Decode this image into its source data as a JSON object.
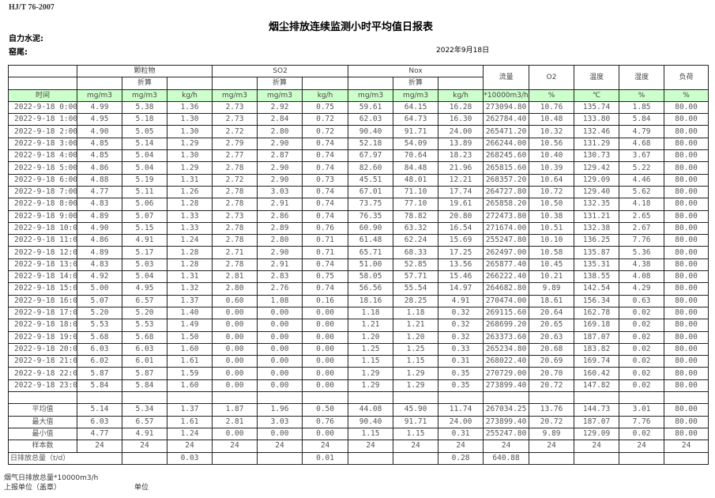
{
  "standard": "HJ/T  76-2007",
  "title": "烟尘排放连续监测小时平均值日报表",
  "company": "自力水泥:",
  "kiln": "窑尾:",
  "date": "2022年9月18日",
  "header": {
    "groups": [
      "颗粒物",
      "SO2",
      "Nox"
    ],
    "single": [
      "流量",
      "O2",
      "温度",
      "湿度",
      "负荷"
    ],
    "converted": "折算",
    "units": [
      "时间",
      "mg/m3",
      "mg/m3",
      "kg/h",
      "mg/m3",
      "mg/m3",
      "kg/h",
      "mg/m3",
      "mg/m3",
      "kg/h",
      "*10000m3/h",
      "%",
      "℃",
      "%",
      "%"
    ]
  },
  "rows": [
    [
      "2022-9-18 0:00",
      "4.99",
      "5.38",
      "1.36",
      "2.73",
      "2.92",
      "0.75",
      "59.61",
      "64.15",
      "16.28",
      "273094.80",
      "10.76",
      "135.74",
      "1.85",
      "80.00"
    ],
    [
      "2022-9-18 1:00",
      "4.95",
      "5.18",
      "1.30",
      "2.73",
      "2.84",
      "0.72",
      "62.03",
      "64.73",
      "16.30",
      "262784.40",
      "10.48",
      "133.80",
      "5.84",
      "80.00"
    ],
    [
      "2022-9-18 2:00",
      "4.90",
      "5.05",
      "1.30",
      "2.72",
      "2.80",
      "0.72",
      "90.40",
      "91.71",
      "24.00",
      "265471.20",
      "10.32",
      "132.46",
      "4.79",
      "80.00"
    ],
    [
      "2022-9-18 3:00",
      "4.85",
      "5.14",
      "1.29",
      "2.79",
      "2.90",
      "0.74",
      "52.18",
      "54.09",
      "13.89",
      "266244.00",
      "10.56",
      "131.29",
      "4.68",
      "80.00"
    ],
    [
      "2022-9-18 4:00",
      "4.85",
      "5.04",
      "1.30",
      "2.77",
      "2.87",
      "0.74",
      "67.97",
      "70.64",
      "18.23",
      "268245.60",
      "10.40",
      "130.73",
      "3.67",
      "80.00"
    ],
    [
      "2022-9-18 5:00",
      "4.86",
      "5.04",
      "1.29",
      "2.78",
      "2.90",
      "0.74",
      "82.60",
      "84.48",
      "21.96",
      "265815.60",
      "10.39",
      "129.42",
      "5.22",
      "80.00"
    ],
    [
      "2022-9-18 6:00",
      "4.88",
      "5.19",
      "1.31",
      "2.72",
      "2.90",
      "0.73",
      "45.51",
      "48.01",
      "12.21",
      "268357.20",
      "10.64",
      "129.09",
      "4.46",
      "80.00"
    ],
    [
      "2022-9-18 7:00",
      "4.77",
      "5.11",
      "1.26",
      "2.78",
      "3.03",
      "0.74",
      "67.01",
      "71.10",
      "17.74",
      "264727.80",
      "10.72",
      "129.40",
      "5.62",
      "80.00"
    ],
    [
      "2022-9-18 8:00",
      "4.83",
      "5.06",
      "1.28",
      "2.78",
      "2.91",
      "0.74",
      "73.75",
      "77.10",
      "19.61",
      "265858.20",
      "10.50",
      "132.35",
      "4.18",
      "80.00"
    ],
    [
      "2022-9-18 9:00",
      "4.89",
      "5.07",
      "1.33",
      "2.73",
      "2.86",
      "0.74",
      "76.35",
      "78.82",
      "20.80",
      "272473.80",
      "10.38",
      "131.21",
      "2.65",
      "80.00"
    ],
    [
      "2022-9-18 10:00",
      "4.90",
      "5.15",
      "1.33",
      "2.78",
      "2.89",
      "0.76",
      "60.90",
      "63.32",
      "16.54",
      "271674.00",
      "10.51",
      "132.38",
      "2.67",
      "80.00"
    ],
    [
      "2022-9-18 11:00",
      "4.86",
      "4.91",
      "1.24",
      "2.78",
      "2.80",
      "0.71",
      "61.48",
      "62.24",
      "15.69",
      "255247.80",
      "10.10",
      "136.25",
      "7.76",
      "80.00"
    ],
    [
      "2022-9-18 12:00",
      "4.89",
      "5.17",
      "1.28",
      "2.71",
      "2.90",
      "0.71",
      "65.71",
      "68.33",
      "17.25",
      "262497.00",
      "10.58",
      "135.87",
      "5.36",
      "80.00"
    ],
    [
      "2022-9-18 13:00",
      "4.83",
      "5.03",
      "1.28",
      "2.78",
      "2.91",
      "0.74",
      "51.00",
      "52.85",
      "13.56",
      "265877.40",
      "10.45",
      "135.31",
      "4.38",
      "80.00"
    ],
    [
      "2022-9-18 14:00",
      "4.92",
      "5.04",
      "1.31",
      "2.81",
      "2.83",
      "0.75",
      "58.05",
      "57.71",
      "15.46",
      "266222.40",
      "10.21",
      "138.55",
      "4.08",
      "80.00"
    ],
    [
      "2022-9-18 15:00",
      "5.00",
      "4.95",
      "1.32",
      "2.80",
      "2.76",
      "0.74",
      "56.56",
      "55.54",
      "14.97",
      "264682.80",
      "9.89",
      "142.54",
      "4.29",
      "80.00"
    ],
    [
      "2022-9-18 16:00",
      "5.07",
      "6.57",
      "1.37",
      "0.60",
      "1.08",
      "0.16",
      "18.16",
      "28.25",
      "4.91",
      "270474.00",
      "18.61",
      "156.34",
      "0.63",
      "80.00"
    ],
    [
      "2022-9-18 17:00",
      "5.20",
      "5.20",
      "1.40",
      "0.00",
      "0.00",
      "0.00",
      "1.18",
      "1.18",
      "0.32",
      "269115.60",
      "20.64",
      "162.78",
      "0.02",
      "80.00"
    ],
    [
      "2022-9-18 18:00",
      "5.53",
      "5.53",
      "1.49",
      "0.00",
      "0.00",
      "0.00",
      "1.21",
      "1.21",
      "0.32",
      "268699.20",
      "20.65",
      "169.18",
      "0.02",
      "80.00"
    ],
    [
      "2022-9-18 19:00",
      "5.68",
      "5.68",
      "1.50",
      "0.00",
      "0.00",
      "0.00",
      "1.20",
      "1.20",
      "0.32",
      "263373.60",
      "20.63",
      "187.07",
      "0.02",
      "80.00"
    ],
    [
      "2022-9-18 20:00",
      "6.03",
      "6.03",
      "1.60",
      "0.00",
      "0.00",
      "0.00",
      "1.25",
      "1.25",
      "0.33",
      "265234.80",
      "20.68",
      "183.82",
      "0.02",
      "80.00"
    ],
    [
      "2022-9-18 21:00",
      "6.02",
      "6.01",
      "1.61",
      "0.00",
      "0.00",
      "0.00",
      "1.15",
      "1.15",
      "0.31",
      "268022.40",
      "20.69",
      "169.74",
      "0.02",
      "80.00"
    ],
    [
      "2022-9-18 22:00",
      "5.87",
      "5.87",
      "1.59",
      "0.00",
      "0.00",
      "0.00",
      "1.29",
      "1.29",
      "0.35",
      "270729.00",
      "20.70",
      "160.42",
      "0.02",
      "80.00"
    ],
    [
      "2022-9-18 23:00",
      "5.84",
      "5.84",
      "1.60",
      "0.00",
      "0.00",
      "0.00",
      "1.29",
      "1.29",
      "0.35",
      "273899.40",
      "20.72",
      "147.82",
      "0.02",
      "80.00"
    ]
  ],
  "stats": [
    [
      "平均值",
      "5.14",
      "5.34",
      "1.37",
      "1.87",
      "1.96",
      "0.50",
      "44.08",
      "45.90",
      "11.74",
      "267034.25",
      "13.76",
      "144.73",
      "3.01",
      "80.00"
    ],
    [
      "最大值",
      "6.03",
      "6.57",
      "1.61",
      "2.81",
      "3.03",
      "0.76",
      "90.40",
      "91.71",
      "24.00",
      "273899.40",
      "20.72",
      "187.07",
      "7.76",
      "80.00"
    ],
    [
      "最小值",
      "4.77",
      "4.91",
      "1.24",
      "0.00",
      "0.00",
      "0.00",
      "1.15",
      "1.15",
      "0.31",
      "255247.80",
      "9.89",
      "129.09",
      "0.02",
      "80.00"
    ],
    [
      "样本数",
      "24",
      "24",
      "24",
      "24",
      "24",
      "24",
      "24",
      "24",
      "24",
      "24",
      "24",
      "24",
      "24",
      "24"
    ]
  ],
  "daily_total": {
    "label": "日排放总量（t/d）",
    "values": [
      "",
      "0.03",
      "",
      "",
      "0.01",
      "",
      "",
      "0.28",
      "640.88",
      "",
      "",
      "",
      ""
    ]
  },
  "footer": {
    "flue_gas_total": "烟气日排放总量*10000m3/h",
    "reporting_unit": "上报单位（盖章）",
    "unit": "单位"
  },
  "colors": {
    "unit_row_bg": "#ccffcc"
  }
}
